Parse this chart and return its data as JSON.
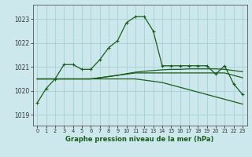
{
  "title": "Graphe pression niveau de la mer (hPa)",
  "background_color": "#cce8ec",
  "grid_color": "#a8d4d8",
  "line_color": "#1a5c1a",
  "x_ticks": [
    0,
    1,
    2,
    3,
    4,
    5,
    6,
    7,
    8,
    9,
    10,
    11,
    12,
    13,
    14,
    15,
    16,
    17,
    18,
    19,
    20,
    21,
    22,
    23
  ],
  "y_ticks": [
    1019,
    1020,
    1021,
    1022,
    1023
  ],
  "ylim": [
    1018.55,
    1023.6
  ],
  "xlim": [
    -0.5,
    23.5
  ],
  "series": {
    "main": [
      1019.5,
      1020.1,
      1020.5,
      1021.1,
      1021.1,
      1020.9,
      1020.9,
      1021.3,
      1021.8,
      1022.1,
      1022.85,
      1023.1,
      1023.1,
      1022.5,
      1021.05,
      1021.05,
      1021.05,
      1021.05,
      1021.05,
      1021.05,
      1020.7,
      1021.05,
      1020.3,
      1019.85
    ],
    "line2": [
      1020.5,
      1020.5,
      1020.5,
      1020.5,
      1020.5,
      1020.5,
      1020.5,
      1020.55,
      1020.6,
      1020.65,
      1020.7,
      1020.75,
      1020.75,
      1020.75,
      1020.75,
      1020.75,
      1020.75,
      1020.75,
      1020.75,
      1020.75,
      1020.75,
      1020.75,
      1020.65,
      1020.55
    ],
    "line3": [
      1020.5,
      1020.5,
      1020.5,
      1020.5,
      1020.5,
      1020.5,
      1020.5,
      1020.5,
      1020.5,
      1020.5,
      1020.5,
      1020.5,
      1020.45,
      1020.4,
      1020.35,
      1020.25,
      1020.15,
      1020.05,
      1019.95,
      1019.85,
      1019.75,
      1019.65,
      1019.55,
      1019.45
    ],
    "line4": [
      1020.5,
      1020.5,
      1020.5,
      1020.5,
      1020.5,
      1020.5,
      1020.5,
      1020.55,
      1020.6,
      1020.65,
      1020.72,
      1020.78,
      1020.82,
      1020.85,
      1020.88,
      1020.9,
      1020.9,
      1020.92,
      1020.92,
      1020.92,
      1020.92,
      1020.9,
      1020.85,
      1020.8
    ]
  }
}
